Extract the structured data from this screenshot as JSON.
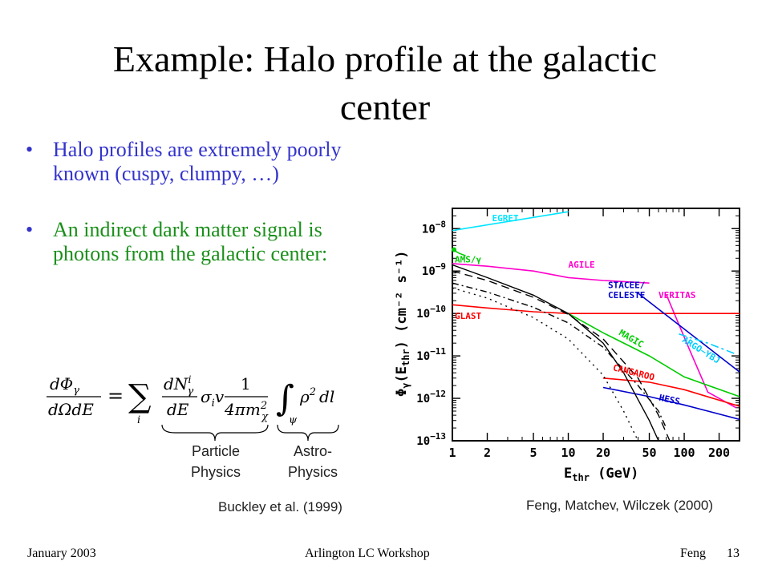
{
  "slide": {
    "title_line1": "Example: Halo profile at the galactic",
    "title_line2": "center",
    "bullets": [
      "Halo profiles are extremely poorly known (cuspy, clumpy, …)",
      "An indirect dark matter signal is photons from the galactic center:"
    ],
    "formula": {
      "lhs_num": "dΦ",
      "lhs_sub": "γ",
      "lhs_den": "dΩdE",
      "eq": "=",
      "sum": "∑",
      "sum_idx": "i",
      "dn_num": "dN",
      "dn_sup": "i",
      "dn_sub": "γ",
      "dn_den": "dE",
      "sigma": "σ",
      "sigma_sub": "i",
      "v": "v",
      "frac_num": "1",
      "frac_den": "4πm",
      "frac_den_sup": "2",
      "frac_den_sub": "χ",
      "int": "∫",
      "int_sub": "ψ",
      "rho": "ρ",
      "rho_sup": "2",
      "dl": "dl"
    },
    "brace_labels": [
      [
        "Particle",
        "Physics"
      ],
      [
        "Astro-",
        "Physics"
      ]
    ],
    "left_citation": "Buckley et al. (1999)",
    "right_citation": "Feng, Matchev, Wilczek (2000)",
    "footer": {
      "date": "January 2003",
      "event": "Arlington LC Workshop",
      "author": "Feng",
      "page": "13"
    }
  },
  "colors": {
    "bullet_blue": "#3333cc",
    "bullet_green": "#1a8f1a",
    "egret": "#00e5ff",
    "agile": "#ff00cc",
    "veritas": "#ff00cc",
    "glast": "#ff0000",
    "magic": "#00cc00",
    "stacee": "#0000cc",
    "hess": "#0000cc",
    "cangaroo": "#ff0000",
    "argo": "#00ccff",
    "ams": "#00cc00"
  },
  "chart_data": {
    "type": "line",
    "xscale": "log",
    "yscale": "log",
    "xlim": [
      1,
      300
    ],
    "ylim": [
      1e-13,
      3e-08
    ],
    "xticks": [
      1,
      2,
      5,
      10,
      20,
      50,
      100,
      200
    ],
    "xtick_labels": [
      "1",
      "2",
      "5",
      "10",
      "20",
      "50",
      "100",
      "200"
    ],
    "yticks": [
      1e-13,
      1e-12,
      1e-11,
      1e-10,
      1e-09,
      1e-08
    ],
    "ytick_labels": [
      {
        "base": "10",
        "exp": "−13"
      },
      {
        "base": "10",
        "exp": "−12"
      },
      {
        "base": "10",
        "exp": "−11"
      },
      {
        "base": "10",
        "exp": "−10"
      },
      {
        "base": "10",
        "exp": "−9"
      },
      {
        "base": "10",
        "exp": "−8"
      }
    ],
    "xlabel": {
      "main": "E",
      "sub": "thr",
      "unit": "(GeV)"
    },
    "ylabel": {
      "main": "Φ",
      "sub1": "γ",
      "mid": "(E",
      "sub2": "thr",
      "unit": ") (cm⁻² s⁻¹)"
    },
    "series": [
      {
        "name": "EGRET",
        "color": "#00e5ff",
        "points": [
          [
            1,
            9e-09
          ],
          [
            10,
            2.5e-08
          ]
        ]
      },
      {
        "name": "AGILE",
        "color": "#ff00cc",
        "points": [
          [
            1,
            1.5e-09
          ],
          [
            2,
            1.3e-09
          ],
          [
            5,
            1e-09
          ],
          [
            10,
            7e-10
          ],
          [
            20,
            6e-10
          ],
          [
            50,
            5.2e-10
          ]
        ]
      },
      {
        "name": "VERITAS",
        "color": "#ff00cc",
        "points": [
          [
            70,
            2.8e-10
          ],
          [
            110,
            1.5e-11
          ],
          [
            160,
            1.4e-12
          ],
          [
            280,
            6e-13
          ]
        ]
      },
      {
        "name": "GLAST",
        "color": "#ff0000",
        "points": [
          [
            1,
            1.6e-10
          ],
          [
            2,
            1.35e-10
          ],
          [
            5,
            1.1e-10
          ],
          [
            10,
            1e-10
          ],
          [
            20,
            1e-10
          ],
          [
            300,
            1e-10
          ]
        ]
      },
      {
        "name": "STACEE/ CELESTE",
        "color": "#0000cc",
        "points": [
          [
            40,
            3e-10
          ],
          [
            300,
            4.2e-12
          ]
        ]
      },
      {
        "name": "MAGIC",
        "color": "#00cc00",
        "points": [
          [
            10,
            1e-10
          ],
          [
            20,
            3.5e-11
          ],
          [
            50,
            1e-11
          ],
          [
            100,
            3.2e-12
          ],
          [
            300,
            1.1e-12
          ]
        ]
      },
      {
        "name": "CANGAROO",
        "color": "#ff0000",
        "points": [
          [
            20,
            3e-12
          ],
          [
            50,
            2.4e-12
          ],
          [
            100,
            1.6e-12
          ],
          [
            300,
            6.5e-13
          ]
        ]
      },
      {
        "name": "HESS",
        "color": "#0000cc",
        "points": [
          [
            20,
            1.8e-12
          ],
          [
            50,
            1.1e-12
          ],
          [
            100,
            7e-13
          ],
          [
            300,
            3.2e-13
          ]
        ]
      },
      {
        "name": "ARGO−YBJ",
        "color": "#00ccff",
        "dashed": true,
        "points": [
          [
            90,
            3.3e-11
          ],
          [
            160,
            2e-11
          ],
          [
            280,
            1.1e-11
          ]
        ]
      },
      {
        "name": "AMS/γ",
        "color": "#00cc00",
        "marker": true,
        "points": [
          [
            1,
            3.2e-09
          ],
          [
            1.15,
            2.6e-09
          ],
          [
            1.3,
            2.3e-09
          ]
        ]
      },
      {
        "name": "",
        "color": "#000000",
        "style": "solid",
        "points": [
          [
            1,
            1.4e-09
          ],
          [
            2,
            7e-10
          ],
          [
            5,
            2.7e-10
          ],
          [
            10,
            1e-10
          ],
          [
            20,
            2e-11
          ],
          [
            30,
            4e-12
          ],
          [
            50,
            3e-13
          ],
          [
            60,
            1e-13
          ]
        ]
      },
      {
        "name": "",
        "color": "#000000",
        "style": "longdash",
        "points": [
          [
            1,
            1e-09
          ],
          [
            2,
            6e-10
          ],
          [
            5,
            2.4e-10
          ],
          [
            10,
            9.5e-11
          ],
          [
            20,
            2.5e-11
          ],
          [
            40,
            3e-12
          ],
          [
            60,
            4e-13
          ],
          [
            75,
            1e-13
          ]
        ]
      },
      {
        "name": "",
        "color": "#000000",
        "style": "dashdot",
        "points": [
          [
            1,
            5.2e-10
          ],
          [
            2,
            3.2e-10
          ],
          [
            5,
            1.4e-10
          ],
          [
            10,
            6e-11
          ],
          [
            20,
            1.6e-11
          ],
          [
            40,
            2e-12
          ],
          [
            60,
            5e-13
          ],
          [
            70,
            2e-13
          ]
        ]
      },
      {
        "name": "",
        "color": "#000000",
        "style": "dotted",
        "points": [
          [
            1,
            4e-10
          ],
          [
            2,
            2.3e-10
          ],
          [
            5,
            8e-11
          ],
          [
            10,
            2.5e-11
          ],
          [
            20,
            3.5e-12
          ],
          [
            30,
            5e-13
          ],
          [
            40,
            1e-13
          ]
        ]
      }
    ],
    "labels": [
      {
        "text": "EGRET",
        "color": "#00e5ff",
        "x": 2.2,
        "y": 1.5e-08
      },
      {
        "text": "AMS/γ",
        "color": "#00cc00",
        "x": 1.05,
        "y": 1.6e-09
      },
      {
        "text": "AGILE",
        "color": "#ff00cc",
        "x": 10,
        "y": 1.2e-09
      },
      {
        "text": "STACEE/",
        "color": "#0000cc",
        "x": 22,
        "y": 4e-10
      },
      {
        "text": "CELESTE",
        "color": "#0000cc",
        "x": 22,
        "y": 2.3e-10
      },
      {
        "text": "VERITAS",
        "color": "#ff00cc",
        "x": 60,
        "y": 2.3e-10
      },
      {
        "text": "GLAST",
        "color": "#ff0000",
        "x": 1.05,
        "y": 7.5e-11
      },
      {
        "text": "MAGIC",
        "color": "#00cc00",
        "x": 27,
        "y": 3.2e-11,
        "rotate": 30
      },
      {
        "text": "ARGO−YBJ",
        "color": "#00ccff",
        "x": 95,
        "y": 2.2e-11,
        "rotate": 32
      },
      {
        "text": "CANGAROO",
        "color": "#ff0000",
        "x": 24,
        "y": 4.6e-12,
        "rotate": 14
      },
      {
        "text": "HESS",
        "color": "#0000cc",
        "x": 60,
        "y": 9e-13,
        "rotate": 12
      }
    ]
  }
}
